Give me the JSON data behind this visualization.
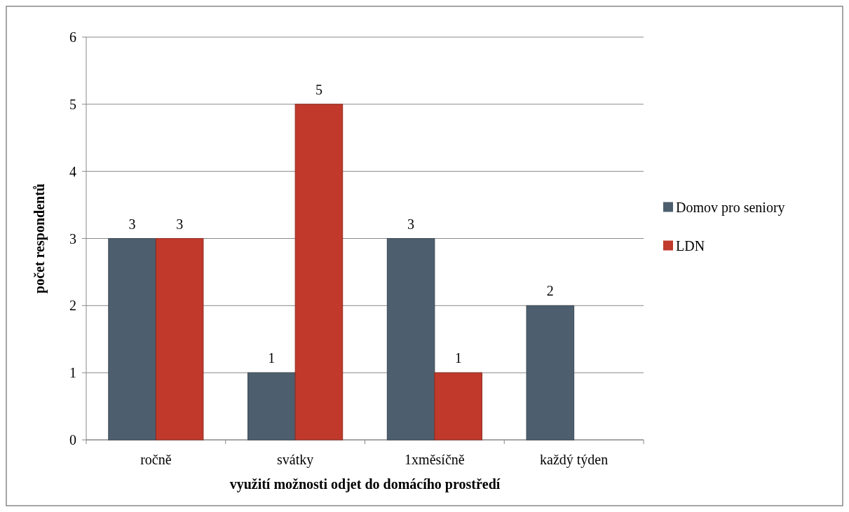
{
  "chart_data": {
    "type": "bar",
    "xlabel": "využití možnosti odjet do domácího prostředí",
    "ylabel": "počet respondentů",
    "categories": [
      "ročně",
      "svátky",
      "1xměsíčně",
      "každý týden"
    ],
    "series": [
      {
        "name": "Domov pro seniory",
        "color": "#4d5f6e",
        "values": [
          3,
          1,
          3,
          2
        ]
      },
      {
        "name": "LDN",
        "color": "#c0392b",
        "values": [
          3,
          5,
          1,
          null
        ]
      }
    ],
    "ylim": [
      0,
      6
    ],
    "yticks": [
      0,
      1,
      2,
      3,
      4,
      5,
      6
    ],
    "grid": "y",
    "legend": "right",
    "data_labels": true
  }
}
